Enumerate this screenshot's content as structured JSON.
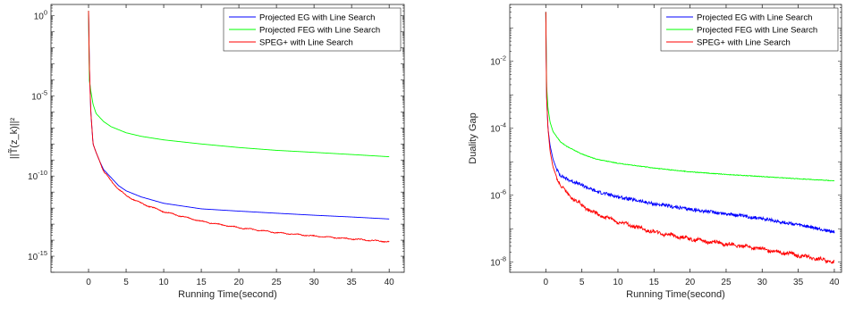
{
  "chart_data": [
    {
      "type": "line",
      "xlabel": "Running Time(second)",
      "ylabel": "||T̃(z_k)||²",
      "y_scale": "log",
      "xlim": [
        -5,
        42
      ],
      "ylim": [
        1e-16,
        5
      ],
      "x_ticks": [
        0,
        5,
        10,
        15,
        20,
        25,
        30,
        35,
        40
      ],
      "x_tick_labels": [
        "0",
        "5",
        "10",
        "15",
        "20",
        "25",
        "30",
        "35",
        "40"
      ],
      "y_ticks": [
        1,
        1e-05,
        1e-10,
        1e-15
      ],
      "y_tick_labels": [
        "10^0",
        "10^-5",
        "10^-10",
        "10^-15"
      ],
      "legend_position": "top-right",
      "grid": false,
      "series": [
        {
          "name": "Projected EG with Line Search",
          "color": "#0000ff",
          "x": [
            0,
            0.1,
            0.3,
            0.6,
            1,
            1.5,
            2,
            3,
            4,
            5,
            7,
            10,
            15,
            20,
            25,
            30,
            35,
            40
          ],
          "y": [
            2,
            0.001,
            1e-06,
            1e-08,
            3e-09,
            8e-10,
            2.5e-10,
            8e-11,
            2.5e-11,
            1.2e-11,
            5e-12,
            2e-12,
            9e-13,
            6.5e-13,
            4.8e-13,
            3.6e-13,
            2.8e-13,
            2.1e-13
          ]
        },
        {
          "name": "Projected FEG with Line Search",
          "color": "#00ff00",
          "x": [
            0,
            0.1,
            0.3,
            0.6,
            1,
            2,
            3,
            5,
            7,
            10,
            15,
            20,
            25,
            30,
            35,
            40
          ],
          "y": [
            2,
            0.0001,
            2e-05,
            3e-06,
            8e-07,
            2.5e-07,
            1.2e-07,
            5e-08,
            3e-08,
            1.8e-08,
            1e-08,
            6e-09,
            4e-09,
            3e-09,
            2.2e-09,
            1.6e-09
          ]
        },
        {
          "name": "SPEG+ with Line Search",
          "color": "#ff0000",
          "x": [
            0,
            0.1,
            0.3,
            0.6,
            1,
            1.5,
            2,
            3,
            4,
            5,
            7,
            10,
            15,
            20,
            25,
            30,
            35,
            40
          ],
          "y": [
            2,
            0.001,
            1e-06,
            1e-08,
            3e-09,
            8e-10,
            2e-10,
            5e-11,
            1.5e-11,
            6e-12,
            2e-12,
            6e-13,
            1.5e-13,
            6e-14,
            3e-14,
            1.8e-14,
            1.2e-14,
            8e-15
          ]
        }
      ]
    },
    {
      "type": "line",
      "xlabel": "Running Time(second)",
      "ylabel": "Duality Gap",
      "y_scale": "log",
      "xlim": [
        -5,
        41
      ],
      "ylim": [
        5e-09,
        0.5
      ],
      "x_ticks": [
        0,
        5,
        10,
        15,
        20,
        25,
        30,
        35,
        40
      ],
      "x_tick_labels": [
        "0",
        "5",
        "10",
        "15",
        "20",
        "25",
        "30",
        "35",
        "40"
      ],
      "y_ticks": [
        0.01,
        0.0001,
        1e-06,
        1e-08
      ],
      "y_tick_labels": [
        "10^-2",
        "10^-4",
        "10^-6",
        "10^-8"
      ],
      "legend_position": "top-right",
      "grid": false,
      "series": [
        {
          "name": "Projected EG with Line Search",
          "color": "#0000ff",
          "x": [
            0,
            0.1,
            0.3,
            0.6,
            1,
            1.5,
            2,
            3,
            5,
            7,
            10,
            15,
            20,
            25,
            30,
            35,
            40
          ],
          "y": [
            0.3,
            0.001,
            0.0001,
            3e-05,
            1.2e-05,
            6e-06,
            4e-06,
            3e-06,
            2e-06,
            1.3e-06,
            9e-07,
            5.5e-07,
            3.8e-07,
            2.8e-07,
            2e-07,
            1.3e-07,
            8e-08
          ]
        },
        {
          "name": "Projected FEG with Line Search",
          "color": "#00ff00",
          "x": [
            0,
            0.1,
            0.3,
            0.6,
            1,
            2,
            3,
            5,
            7,
            10,
            15,
            20,
            25,
            30,
            35,
            40
          ],
          "y": [
            0.3,
            0.002,
            0.0004,
            0.00015,
            8e-05,
            4e-05,
            2.8e-05,
            1.7e-05,
            1.2e-05,
            9e-06,
            6.5e-06,
            5e-06,
            4.2e-06,
            3.6e-06,
            3.1e-06,
            2.7e-06
          ]
        },
        {
          "name": "SPEG+ with Line Search",
          "color": "#ff0000",
          "x": [
            0,
            0.1,
            0.3,
            0.6,
            1,
            1.5,
            2,
            3,
            5,
            7,
            10,
            15,
            20,
            25,
            30,
            35,
            40
          ],
          "y": [
            0.3,
            0.001,
            0.0001,
            2e-05,
            7e-06,
            3.5e-06,
            2e-06,
            1.1e-06,
            5e-07,
            2.8e-07,
            1.6e-07,
            8e-08,
            5e-08,
            3.5e-08,
            2.5e-08,
            1.6e-08,
            1e-08
          ]
        }
      ]
    }
  ]
}
